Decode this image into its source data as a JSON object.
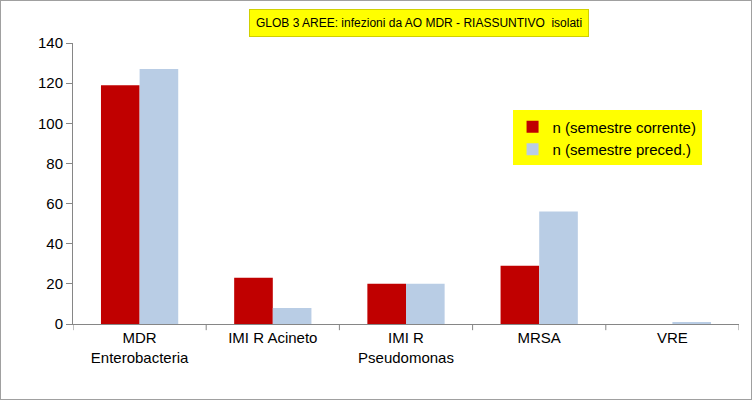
{
  "chart_data": {
    "type": "bar",
    "title": "GLOB 3 AREE: infezioni da AO MDR - RIASSUNTIVO  isolati",
    "categories": [
      "MDR\nEnterobacteria",
      "IMI R Acineto",
      "IMI R\nPseudomonas",
      "MRSA",
      "VRE"
    ],
    "series": [
      {
        "name": "n (semestre corrente)",
        "color": "#C00000",
        "values": [
          119,
          23,
          20,
          29,
          0
        ]
      },
      {
        "name": "n (semestre preced.)",
        "color": "#B9CDE5",
        "values": [
          127,
          8,
          20,
          56,
          1
        ]
      }
    ],
    "ylim": [
      0,
      140
    ],
    "yticks": [
      0,
      20,
      40,
      60,
      80,
      100,
      120,
      140
    ],
    "grid": false,
    "legend": "right"
  }
}
